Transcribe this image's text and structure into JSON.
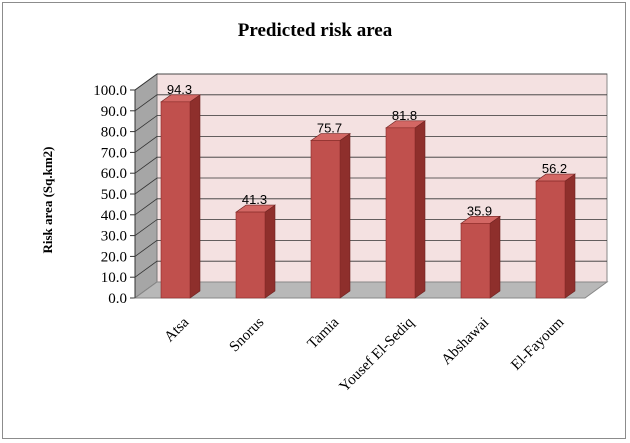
{
  "chart_data": {
    "type": "bar",
    "title": "Predicted risk area",
    "ylabel": "Risk area (Sq.km2)",
    "xlabel": "",
    "categories": [
      "Atsa",
      "Snorus",
      "Tamia",
      "Yousef El-Sediq",
      "Abshawai",
      "El-Fayoum"
    ],
    "values": [
      94.3,
      41.3,
      75.7,
      81.8,
      35.9,
      56.2
    ],
    "data_labels": [
      "94.3",
      "41.3",
      "75.7",
      "81.8",
      "35.9",
      "56.2"
    ],
    "ylim": [
      0,
      100
    ],
    "yticks": [
      "0.0",
      "10.0",
      "20.0",
      "30.0",
      "40.0",
      "50.0",
      "60.0",
      "70.0",
      "80.0",
      "90.0",
      "100.0"
    ],
    "grid": true,
    "style": "3d-column",
    "colors": {
      "bar_front": "#c0504d",
      "bar_side": "#8e2f2c",
      "bar_top": "#d36764",
      "back_wall": "#f4e1e1",
      "side_wall": "#a6a6a6",
      "floor": "#b8b8b8"
    }
  }
}
